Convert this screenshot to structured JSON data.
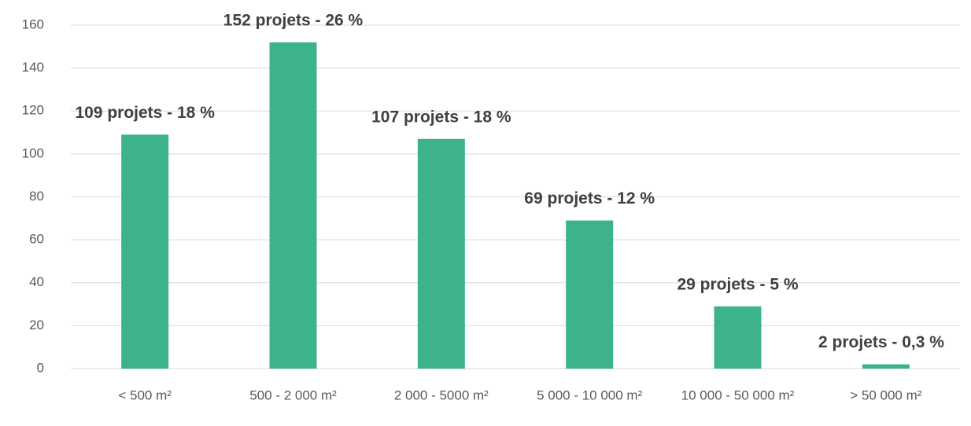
{
  "chart_data": {
    "type": "bar",
    "categories": [
      "< 500 m²",
      "500 - 2 000 m²",
      "2 000 - 5000 m²",
      "5 000 - 10 000 m²",
      "10 000 - 50 000 m²",
      "> 50 000 m²"
    ],
    "values": [
      109,
      152,
      107,
      69,
      29,
      2
    ],
    "value_labels": [
      "109  projets - 18 %",
      "152  projets - 26 %",
      "107  projets - 18 %",
      "69  projets - 12 %",
      "29  projets - 5 %",
      "2  projets - 0,3 %"
    ],
    "color": "#3cb38d",
    "ylim": [
      0,
      160
    ],
    "yticks": [
      0,
      20,
      40,
      60,
      80,
      100,
      120,
      140,
      160
    ],
    "grid": true
  }
}
